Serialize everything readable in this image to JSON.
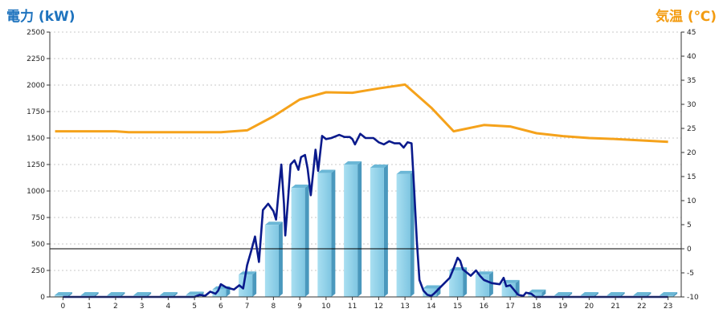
{
  "chart_data": {
    "type": "bar+line",
    "title_left": "電力 (kW)",
    "title_right": "気温 (℃)",
    "x_categories": [
      "0",
      "1",
      "2",
      "3",
      "4",
      "5",
      "6",
      "7",
      "8",
      "9",
      "10",
      "11",
      "12",
      "13",
      "14",
      "15",
      "16",
      "17",
      "18",
      "19",
      "20",
      "21",
      "22",
      "23"
    ],
    "y_left_ticks": [
      "0",
      "250",
      "500",
      "750",
      "1000",
      "1250",
      "1500",
      "1750",
      "2000",
      "2250",
      "2500"
    ],
    "y_left_range": [
      0,
      2500
    ],
    "y_right_ticks": [
      "-10",
      "-5",
      "0",
      "5",
      "10",
      "15",
      "20",
      "25",
      "30",
      "35",
      "40",
      "45"
    ],
    "y_right_range": [
      -10,
      45
    ],
    "grid": true,
    "hourly_power_bars": {
      "values": [
        10,
        10,
        10,
        10,
        10,
        20,
        70,
        210,
        680,
        1030,
        1170,
        1250,
        1220,
        1160,
        80,
        250,
        210,
        130,
        40,
        10,
        10,
        10,
        10,
        10
      ],
      "color": "#8ecfe6"
    },
    "power_line": {
      "color": "#0a1a8c",
      "points": [
        [
          0,
          0
        ],
        [
          1,
          0
        ],
        [
          2,
          0
        ],
        [
          3,
          0
        ],
        [
          4,
          0
        ],
        [
          5,
          0
        ],
        [
          5.2,
          20
        ],
        [
          5.4,
          10
        ],
        [
          5.6,
          50
        ],
        [
          5.8,
          30
        ],
        [
          5.9,
          60
        ],
        [
          6.0,
          120
        ],
        [
          6.2,
          90
        ],
        [
          6.5,
          70
        ],
        [
          6.7,
          110
        ],
        [
          6.85,
          80
        ],
        [
          7.0,
          300
        ],
        [
          7.15,
          430
        ],
        [
          7.3,
          570
        ],
        [
          7.45,
          330
        ],
        [
          7.6,
          820
        ],
        [
          7.8,
          880
        ],
        [
          8.0,
          810
        ],
        [
          8.1,
          730
        ],
        [
          8.2,
          1000
        ],
        [
          8.3,
          1250
        ],
        [
          8.4,
          880
        ],
        [
          8.45,
          580
        ],
        [
          8.55,
          900
        ],
        [
          8.65,
          1250
        ],
        [
          8.8,
          1290
        ],
        [
          8.95,
          1200
        ],
        [
          9.05,
          1320
        ],
        [
          9.2,
          1340
        ],
        [
          9.3,
          1210
        ],
        [
          9.42,
          960
        ],
        [
          9.6,
          1390
        ],
        [
          9.7,
          1190
        ],
        [
          9.85,
          1520
        ],
        [
          10.0,
          1490
        ],
        [
          10.2,
          1500
        ],
        [
          10.5,
          1530
        ],
        [
          10.7,
          1510
        ],
        [
          10.9,
          1510
        ],
        [
          11.0,
          1490
        ],
        [
          11.1,
          1440
        ],
        [
          11.3,
          1540
        ],
        [
          11.5,
          1500
        ],
        [
          11.8,
          1500
        ],
        [
          12.0,
          1460
        ],
        [
          12.2,
          1440
        ],
        [
          12.4,
          1470
        ],
        [
          12.6,
          1450
        ],
        [
          12.8,
          1450
        ],
        [
          12.95,
          1410
        ],
        [
          13.1,
          1460
        ],
        [
          13.25,
          1450
        ],
        [
          13.35,
          1010
        ],
        [
          13.45,
          530
        ],
        [
          13.55,
          160
        ],
        [
          13.7,
          60
        ],
        [
          13.85,
          20
        ],
        [
          14.0,
          10
        ],
        [
          14.1,
          30
        ],
        [
          14.3,
          80
        ],
        [
          14.5,
          130
        ],
        [
          14.7,
          180
        ],
        [
          14.85,
          270
        ],
        [
          15.0,
          370
        ],
        [
          15.1,
          340
        ],
        [
          15.2,
          260
        ],
        [
          15.35,
          230
        ],
        [
          15.5,
          200
        ],
        [
          15.7,
          250
        ],
        [
          15.85,
          200
        ],
        [
          16.0,
          160
        ],
        [
          16.3,
          130
        ],
        [
          16.6,
          120
        ],
        [
          16.75,
          180
        ],
        [
          16.85,
          100
        ],
        [
          17.0,
          110
        ],
        [
          17.1,
          80
        ],
        [
          17.3,
          20
        ],
        [
          17.5,
          10
        ],
        [
          17.6,
          40
        ],
        [
          17.8,
          30
        ],
        [
          17.95,
          0
        ],
        [
          18,
          0
        ],
        [
          19,
          0
        ],
        [
          20,
          0
        ],
        [
          21,
          0
        ],
        [
          22,
          0
        ],
        [
          23,
          0
        ]
      ]
    },
    "temperature_line": {
      "color": "#f5a21b",
      "points": [
        [
          -0.3,
          24.4
        ],
        [
          2,
          24.4
        ],
        [
          2.5,
          24.2
        ],
        [
          5,
          24.2
        ],
        [
          6,
          24.2
        ],
        [
          7,
          24.6
        ],
        [
          8,
          27.5
        ],
        [
          9,
          31.0
        ],
        [
          10,
          32.5
        ],
        [
          11,
          32.4
        ],
        [
          12,
          33.3
        ],
        [
          13,
          34.1
        ],
        [
          14,
          29.3
        ],
        [
          14.85,
          24.4
        ],
        [
          16,
          25.7
        ],
        [
          17,
          25.4
        ],
        [
          18,
          24.0
        ],
        [
          19,
          23.4
        ],
        [
          20,
          23.0
        ],
        [
          21,
          22.8
        ],
        [
          22,
          22.5
        ],
        [
          23,
          22.2
        ]
      ]
    }
  }
}
